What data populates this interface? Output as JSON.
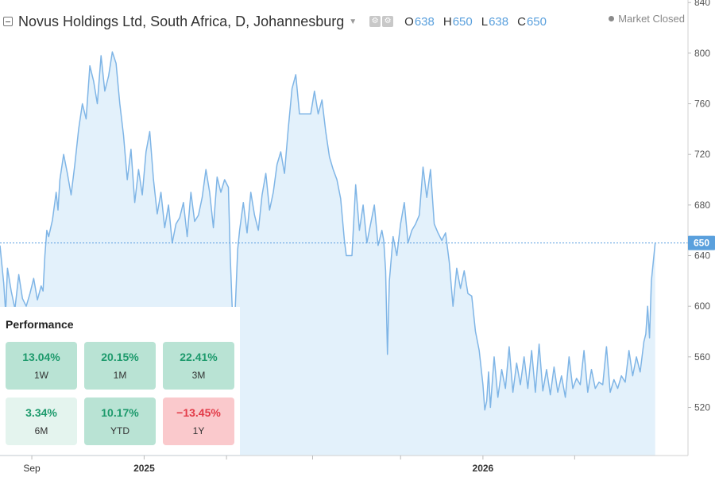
{
  "header": {
    "symbol_title": "Novus Holdings Ltd, South Africa, D, Johannesburg",
    "ohlc": [
      {
        "key": "O",
        "value": "638"
      },
      {
        "key": "H",
        "value": "650"
      },
      {
        "key": "L",
        "value": "638"
      },
      {
        "key": "C",
        "value": "650"
      }
    ],
    "market_status": "Market Closed"
  },
  "performance": {
    "title": "Performance",
    "cells": [
      {
        "value": "13.04%",
        "label": "1W",
        "tone": "pos-strong"
      },
      {
        "value": "20.15%",
        "label": "1M",
        "tone": "pos-strong"
      },
      {
        "value": "22.41%",
        "label": "3M",
        "tone": "pos-strong"
      },
      {
        "value": "3.34%",
        "label": "6M",
        "tone": "pos-light"
      },
      {
        "value": "10.17%",
        "label": "YTD",
        "tone": "pos-strong"
      },
      {
        "value": "−13.45%",
        "label": "1Y",
        "tone": "neg"
      }
    ]
  },
  "colors": {
    "line": "#7fb5e6",
    "area": "#e3f1fb",
    "price_line": "#5a9ee0",
    "price_badge": "#5aa0dd",
    "positive": "#1d9a6c",
    "negative": "#e23b48"
  },
  "chart_data": {
    "type": "area",
    "title": "Novus Holdings Ltd, South Africa, D, Johannesburg",
    "xlabel": "",
    "ylabel": "",
    "ylim": [
      482,
      842
    ],
    "xlim": [
      0,
      365
    ],
    "y_ticks": [
      520,
      560,
      600,
      640,
      680,
      720,
      760,
      800,
      840
    ],
    "x_ticks": [
      {
        "label": "Sep",
        "x": 17,
        "bold": false
      },
      {
        "label": "2025",
        "x": 77,
        "bold": true
      },
      {
        "label": "2026",
        "x": 258,
        "bold": true
      }
    ],
    "x_minor_ticks": [
      121,
      167,
      214,
      307
    ],
    "last_price": {
      "value": 650,
      "label": "650"
    },
    "grid": false,
    "legend": "none",
    "series": [
      {
        "x": [
          0,
          2,
          3,
          4,
          6,
          8,
          10,
          12,
          14,
          16,
          18,
          20,
          22,
          23,
          24,
          25,
          26,
          28,
          30,
          31,
          32,
          34,
          36,
          38,
          40,
          42,
          44,
          46,
          48,
          50,
          52,
          54,
          56,
          58,
          60,
          62,
          64,
          66,
          68,
          70,
          72,
          74,
          76,
          78,
          80,
          82,
          84,
          86,
          88,
          90,
          92,
          94,
          96,
          98,
          100,
          102,
          104,
          106,
          108,
          110,
          112,
          114,
          116,
          118,
          120,
          122,
          123,
          124,
          125,
          126,
          127,
          128,
          130,
          132,
          134,
          136,
          138,
          140,
          142,
          144,
          146,
          148,
          150,
          152,
          154,
          156,
          158,
          160,
          162,
          164,
          166,
          168,
          170,
          172,
          174,
          176,
          178,
          180,
          182,
          184,
          185,
          186,
          188,
          190,
          192,
          194,
          196,
          198,
          200,
          202,
          204,
          205,
          206,
          207,
          208,
          210,
          212,
          214,
          216,
          218,
          220,
          222,
          224,
          226,
          228,
          230,
          232,
          234,
          236,
          238,
          240,
          242,
          244,
          246,
          248,
          250,
          252,
          254,
          256,
          258,
          259,
          260,
          261,
          262,
          264,
          266,
          268,
          270,
          272,
          274,
          276,
          278,
          280,
          282,
          284,
          286,
          288,
          290,
          292,
          294,
          296,
          298,
          300,
          302,
          304,
          306,
          308,
          310,
          312,
          314,
          316,
          318,
          320,
          322,
          324,
          326,
          328,
          330,
          332,
          334,
          336,
          338,
          340,
          342,
          344,
          345,
          346,
          347,
          348,
          350
        ],
        "values": [
          648,
          618,
          595,
          630,
          612,
          598,
          625,
          606,
          600,
          610,
          622,
          605,
          616,
          612,
          640,
          660,
          655,
          668,
          690,
          676,
          700,
          720,
          705,
          688,
          712,
          740,
          760,
          748,
          790,
          778,
          760,
          798,
          770,
          782,
          801,
          792,
          760,
          735,
          700,
          724,
          682,
          708,
          688,
          722,
          738,
          700,
          673,
          690,
          662,
          680,
          650,
          665,
          670,
          682,
          655,
          690,
          667,
          672,
          686,
          708,
          690,
          662,
          702,
          690,
          700,
          694,
          640,
          600,
          575,
          610,
          645,
          660,
          682,
          658,
          690,
          672,
          660,
          688,
          705,
          676,
          690,
          712,
          722,
          705,
          740,
          772,
          783,
          752,
          752,
          752,
          752,
          770,
          752,
          763,
          738,
          718,
          708,
          700,
          685,
          652,
          640,
          640,
          640,
          696,
          660,
          680,
          650,
          665,
          680,
          648,
          660,
          652,
          628,
          562,
          620,
          655,
          640,
          665,
          682,
          650,
          660,
          665,
          672,
          710,
          686,
          708,
          665,
          658,
          652,
          658,
          635,
          600,
          630,
          614,
          628,
          610,
          608,
          580,
          565,
          538,
          518,
          525,
          548,
          520,
          560,
          528,
          550,
          535,
          568,
          532,
          555,
          538,
          560,
          535,
          565,
          532,
          570,
          533,
          550,
          530,
          552,
          532,
          545,
          528,
          560,
          535,
          543,
          538,
          565,
          532,
          550,
          535,
          540,
          538,
          568,
          532,
          542,
          535,
          545,
          540,
          565,
          545,
          560,
          548,
          572,
          578,
          600,
          575,
          620,
          650
        ]
      }
    ]
  }
}
